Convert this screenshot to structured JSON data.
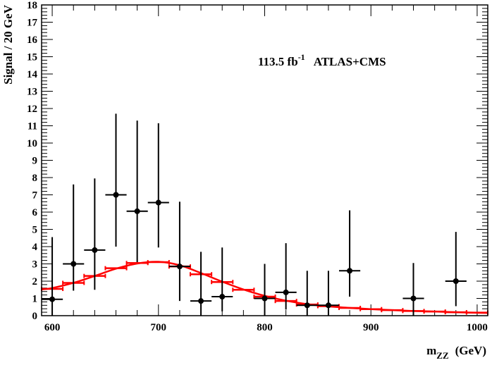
{
  "chart_data": {
    "type": "scatter",
    "title": "",
    "xlabel": {
      "main": "m",
      "sub": "ZZ",
      "unit": "(GeV)"
    },
    "ylabel": "Signal / 20 GeV",
    "annotation": {
      "lumi_value": "113.5 fb",
      "lumi_sup": "-1",
      "experiment": "ATLAS+CMS"
    },
    "xlim": [
      590,
      1010
    ],
    "ylim": [
      0,
      18
    ],
    "x_ticks": [
      600,
      700,
      800,
      900,
      1000
    ],
    "y_ticks": [
      0,
      1,
      2,
      3,
      4,
      5,
      6,
      7,
      8,
      9,
      10,
      11,
      12,
      13,
      14,
      15,
      16,
      17,
      18
    ],
    "grid": false,
    "colors": {
      "data": "#000000",
      "model": "#ff0000"
    },
    "series": [
      {
        "kind": "data-points-with-errors",
        "points": [
          {
            "x": 600,
            "xlo": 590,
            "xhi": 610,
            "y": 0.95,
            "ylo": 0.0,
            "yhi": 4.55
          },
          {
            "x": 620,
            "xlo": 610,
            "xhi": 630,
            "y": 3.0,
            "ylo": 1.45,
            "yhi": 7.6
          },
          {
            "x": 640,
            "xlo": 630,
            "xhi": 650,
            "y": 3.8,
            "ylo": 1.5,
            "yhi": 7.95
          },
          {
            "x": 660,
            "xlo": 650,
            "xhi": 670,
            "y": 7.0,
            "ylo": 4.0,
            "yhi": 11.7
          },
          {
            "x": 680,
            "xlo": 670,
            "xhi": 690,
            "y": 6.05,
            "ylo": 3.1,
            "yhi": 11.3
          },
          {
            "x": 700,
            "xlo": 690,
            "xhi": 710,
            "y": 6.55,
            "ylo": 3.95,
            "yhi": 11.15
          },
          {
            "x": 720,
            "xlo": 710,
            "xhi": 730,
            "y": 2.85,
            "ylo": 0.85,
            "yhi": 6.6
          },
          {
            "x": 740,
            "xlo": 730,
            "xhi": 750,
            "y": 0.85,
            "ylo": 0.0,
            "yhi": 3.7
          },
          {
            "x": 760,
            "xlo": 750,
            "xhi": 770,
            "y": 1.1,
            "ylo": 0.25,
            "yhi": 3.95
          },
          {
            "x": 800,
            "xlo": 790,
            "xhi": 810,
            "y": 1.0,
            "ylo": 0.0,
            "yhi": 3.0
          },
          {
            "x": 820,
            "xlo": 810,
            "xhi": 830,
            "y": 1.35,
            "ylo": 0.35,
            "yhi": 4.2
          },
          {
            "x": 840,
            "xlo": 830,
            "xhi": 850,
            "y": 0.6,
            "ylo": 0.0,
            "yhi": 2.6
          },
          {
            "x": 860,
            "xlo": 850,
            "xhi": 870,
            "y": 0.6,
            "ylo": 0.0,
            "yhi": 2.6
          },
          {
            "x": 880,
            "xlo": 870,
            "xhi": 890,
            "y": 2.6,
            "ylo": 1.1,
            "yhi": 6.1
          },
          {
            "x": 940,
            "xlo": 930,
            "xhi": 950,
            "y": 1.0,
            "ylo": 0.0,
            "yhi": 3.05
          },
          {
            "x": 980,
            "xlo": 970,
            "xhi": 990,
            "y": 2.0,
            "ylo": 0.55,
            "yhi": 4.85
          }
        ]
      },
      {
        "kind": "binned-prediction",
        "bin_width": 20,
        "bins": [
          {
            "x": 600,
            "y": 1.55
          },
          {
            "x": 620,
            "y": 1.9
          },
          {
            "x": 640,
            "y": 2.3
          },
          {
            "x": 660,
            "y": 2.75
          },
          {
            "x": 680,
            "y": 3.05
          },
          {
            "x": 700,
            "y": 3.1
          },
          {
            "x": 720,
            "y": 2.85
          },
          {
            "x": 740,
            "y": 2.4
          },
          {
            "x": 760,
            "y": 1.95
          },
          {
            "x": 780,
            "y": 1.5
          },
          {
            "x": 800,
            "y": 1.1
          },
          {
            "x": 820,
            "y": 0.85
          },
          {
            "x": 840,
            "y": 0.65
          },
          {
            "x": 860,
            "y": 0.55
          },
          {
            "x": 880,
            "y": 0.45
          },
          {
            "x": 900,
            "y": 0.38
          },
          {
            "x": 920,
            "y": 0.32
          },
          {
            "x": 940,
            "y": 0.27
          },
          {
            "x": 960,
            "y": 0.24
          },
          {
            "x": 980,
            "y": 0.2
          },
          {
            "x": 1000,
            "y": 0.18
          }
        ]
      },
      {
        "kind": "fit-curve",
        "points": [
          {
            "x": 590,
            "y": 1.52
          },
          {
            "x": 600,
            "y": 1.6
          },
          {
            "x": 620,
            "y": 1.9
          },
          {
            "x": 640,
            "y": 2.3
          },
          {
            "x": 660,
            "y": 2.72
          },
          {
            "x": 680,
            "y": 3.02
          },
          {
            "x": 700,
            "y": 3.12
          },
          {
            "x": 720,
            "y": 2.92
          },
          {
            "x": 740,
            "y": 2.47
          },
          {
            "x": 760,
            "y": 1.97
          },
          {
            "x": 780,
            "y": 1.52
          },
          {
            "x": 800,
            "y": 1.15
          },
          {
            "x": 820,
            "y": 0.87
          },
          {
            "x": 840,
            "y": 0.67
          },
          {
            "x": 860,
            "y": 0.54
          },
          {
            "x": 880,
            "y": 0.45
          },
          {
            "x": 900,
            "y": 0.38
          },
          {
            "x": 920,
            "y": 0.32
          },
          {
            "x": 940,
            "y": 0.27
          },
          {
            "x": 960,
            "y": 0.24
          },
          {
            "x": 980,
            "y": 0.2
          },
          {
            "x": 1000,
            "y": 0.17
          },
          {
            "x": 1010,
            "y": 0.16
          }
        ]
      }
    ]
  }
}
